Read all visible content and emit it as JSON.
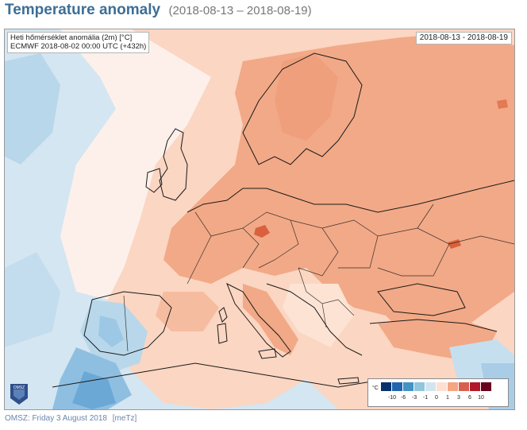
{
  "header": {
    "title": "Temperature anomaly",
    "date_range": "(2018-08-13 – 2018-08-19)"
  },
  "map": {
    "info_line1": "Heti hőmérséklet anomália (2m) [°C]",
    "info_line2": "ECMWF 2018-08-02 00:00 UTC (+432h)",
    "date_label": "2018-08-13 - 2018-08-19",
    "logo_text": "OMSZ",
    "colors": {
      "background_light_blue": "#cfe3ef",
      "light_blue": "#a9cde6",
      "mid_blue": "#6baed6",
      "dark_blue": "#4a8fc7",
      "light_peach": "#fbd2bb",
      "peach": "#f2a887",
      "dark_orange": "#d9613d",
      "borders": "#1a1a1a"
    }
  },
  "legend": {
    "unit": "°C",
    "ticks": [
      "-10",
      "-6",
      "-3",
      "-1",
      "0",
      "1",
      "3",
      "6",
      "10"
    ],
    "colors": [
      "#08306b",
      "#2166ac",
      "#4393c3",
      "#92c5de",
      "#d1e5f0",
      "#fde0d2",
      "#f4a582",
      "#d6604d",
      "#b2182b",
      "#67001f"
    ]
  },
  "footer": {
    "credit": "OMSZ: Friday 3 August 2018",
    "link": "[meTz]"
  }
}
